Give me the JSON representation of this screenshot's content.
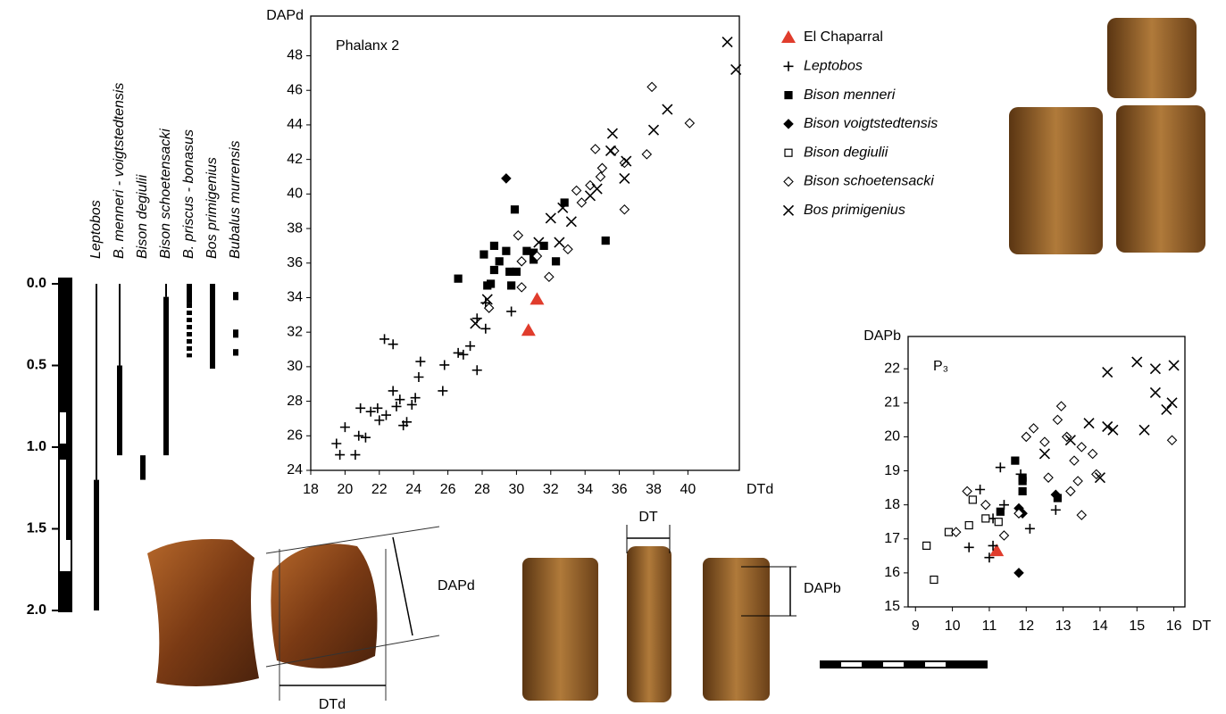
{
  "chart_data": [
    {
      "type": "range",
      "ylim": [
        0,
        2
      ],
      "yticks": [
        {
          "value": 0,
          "label": "0.0"
        },
        0.5,
        {
          "value": 1,
          "label": "1.0"
        },
        1.5,
        {
          "value": 2,
          "label": "2.0"
        }
      ],
      "series": [
        {
          "name": "Leptobos",
          "segments": [
            {
              "from": 0,
              "to": 1.2,
              "style": "thin"
            },
            {
              "from": 1.2,
              "to": 2.0,
              "style": "thick"
            }
          ]
        },
        {
          "name": "B. menneri - voigtstedtensis",
          "segments": [
            {
              "from": 0,
              "to": 0.5,
              "style": "thin"
            },
            {
              "from": 0.5,
              "to": 1.05,
              "style": "thick"
            }
          ]
        },
        {
          "name": "Bison degiulii",
          "segments": [
            {
              "from": 1.05,
              "to": 1.2,
              "style": "thick"
            }
          ]
        },
        {
          "name": "Bison schoetensacki",
          "segments": [
            {
              "from": 0,
              "to": 0.08,
              "style": "thin"
            },
            {
              "from": 0.08,
              "to": 1.05,
              "style": "thick"
            }
          ]
        },
        {
          "name": "B. priscus - bonasus",
          "segments": [
            {
              "from": 0,
              "to": 0.12,
              "style": "thick"
            },
            {
              "from": 0.12,
              "to": 0.45,
              "style": "dashed"
            }
          ]
        },
        {
          "name": "Bos primigenius",
          "segments": [
            {
              "from": 0,
              "to": 0.52,
              "style": "thick"
            }
          ]
        },
        {
          "name": "Bubalus murrensis",
          "segments": [
            {
              "from": 0.05,
              "to": 0.1,
              "style": "thick"
            },
            {
              "from": 0.28,
              "to": 0.33,
              "style": "thick"
            },
            {
              "from": 0.4,
              "to": 0.44,
              "style": "thick"
            }
          ]
        }
      ]
    },
    {
      "type": "scatter",
      "annotation": "Phalanx 2",
      "x_label": "DTd",
      "y_label": "DAPd",
      "xlim": [
        18,
        43
      ],
      "xticks": [
        18,
        20,
        22,
        24,
        26,
        28,
        30,
        32,
        34,
        36,
        38,
        40
      ],
      "ylim": [
        24,
        50.3
      ],
      "yticks": [
        24,
        26,
        28,
        30,
        32,
        34,
        36,
        38,
        40,
        42,
        44,
        46,
        48
      ],
      "legend": "right",
      "series": [
        {
          "name": "El Chaparral",
          "color": "#e03c2c",
          "marker": "triangle",
          "x": [
            30.7,
            31.2
          ],
          "values": [
            32.1,
            33.9
          ]
        },
        {
          "name": "Leptobos",
          "color": "#000000",
          "marker": "plus",
          "x": [
            19.5,
            19.7,
            20.0,
            20.6,
            20.8,
            20.9,
            21.2,
            21.5,
            21.9,
            22.3,
            22.4,
            22.8,
            22.8,
            23.0,
            23.2,
            23.4,
            23.6,
            23.9,
            24.1,
            24.4,
            24.3,
            25.8,
            25.7,
            26.6,
            26.9,
            27.3,
            27.7,
            27.7,
            28.2,
            28.2,
            29.7,
            22.0
          ],
          "values": [
            25.55,
            24.9,
            26.5,
            24.9,
            26.0,
            27.6,
            25.9,
            27.4,
            27.6,
            31.6,
            27.2,
            31.3,
            28.6,
            27.7,
            28.1,
            26.6,
            26.8,
            27.8,
            28.2,
            30.3,
            29.4,
            30.1,
            28.6,
            30.8,
            30.7,
            31.2,
            29.8,
            32.8,
            32.2,
            33.7,
            33.2,
            26.9
          ]
        },
        {
          "name": "Bison menneri",
          "color": "#000000",
          "marker": "square",
          "x": [
            26.6,
            28.1,
            28.7,
            28.7,
            29.0,
            29.4,
            29.9,
            29.6,
            30.0,
            30.6,
            31.0,
            31.6,
            32.3,
            32.8,
            35.2,
            28.3,
            28.5,
            29.7,
            31.0
          ],
          "values": [
            35.1,
            36.5,
            37.0,
            35.6,
            36.1,
            36.7,
            39.1,
            35.5,
            35.5,
            36.7,
            36.2,
            37.0,
            36.1,
            39.5,
            37.3,
            34.7,
            34.8,
            34.7,
            36.6
          ]
        },
        {
          "name": "Bison voigtstedtensis",
          "color": "#000000",
          "marker": "diamond",
          "x": [
            29.4
          ],
          "values": [
            40.9
          ]
        },
        {
          "name": "Bison degiulii",
          "color": "#000000",
          "marker": "open-square",
          "x": [],
          "values": []
        },
        {
          "name": "Bison schoetensacki",
          "color": "#000000",
          "marker": "open-diamond",
          "x": [
            28.4,
            30.1,
            30.3,
            30.3,
            31.2,
            31.9,
            33.0,
            33.5,
            33.8,
            34.6,
            34.9,
            35.0,
            35.7,
            36.3,
            36.3,
            37.6,
            37.9,
            40.1,
            34.3
          ],
          "values": [
            33.4,
            37.6,
            36.1,
            34.6,
            36.4,
            35.2,
            36.8,
            40.2,
            39.5,
            42.6,
            41.0,
            41.5,
            42.5,
            41.8,
            39.1,
            42.3,
            46.2,
            44.1,
            40.5
          ]
        },
        {
          "name": "Bos primigenius",
          "color": "#000000",
          "marker": "x",
          "x": [
            42.3,
            42.8,
            38.8,
            38.0,
            36.4,
            36.3,
            35.6,
            35.5,
            34.7,
            34.3,
            33.2,
            32.7,
            32.0,
            32.5,
            31.3,
            27.6,
            28.3
          ],
          "values": [
            48.8,
            47.2,
            44.9,
            43.7,
            41.9,
            40.9,
            43.5,
            42.5,
            40.3,
            39.9,
            38.4,
            39.2,
            38.6,
            37.2,
            37.2,
            32.5,
            33.9
          ]
        }
      ]
    },
    {
      "type": "scatter",
      "annotation": "P₃",
      "x_label": "DT",
      "y_label": "DAPb",
      "xlim": [
        8.8,
        16.3
      ],
      "xticks": [
        9,
        10,
        11,
        12,
        13,
        14,
        15,
        16
      ],
      "ylim": [
        15,
        22.95
      ],
      "yticks": [
        15,
        16,
        17,
        18,
        19,
        20,
        21,
        22
      ],
      "series": [
        {
          "color": "#e03c2c",
          "marker": "triangle",
          "x": [
            11.2
          ],
          "values": [
            16.65
          ]
        },
        {
          "color": "#000000",
          "marker": "plus",
          "x": [
            10.75,
            11.1,
            11.1,
            11.0,
            11.3,
            11.85,
            12.1,
            12.8,
            10.45,
            11.4
          ],
          "values": [
            18.45,
            17.6,
            16.8,
            16.45,
            19.1,
            18.9,
            17.3,
            17.85,
            16.75,
            18.0
          ]
        },
        {
          "color": "#000000",
          "marker": "square",
          "x": [
            11.7,
            11.9,
            11.9,
            11.9,
            11.3,
            12.85
          ],
          "values": [
            19.3,
            18.8,
            18.7,
            18.4,
            17.8,
            18.2
          ]
        },
        {
          "color": "#000000",
          "marker": "diamond",
          "x": [
            11.8,
            11.8,
            11.9,
            12.8
          ],
          "values": [
            16.0,
            17.9,
            17.75,
            18.3
          ]
        },
        {
          "color": "#000000",
          "marker": "open-square",
          "x": [
            9.3,
            9.5,
            9.9,
            10.45,
            10.55,
            10.9,
            11.25
          ],
          "values": [
            16.8,
            15.8,
            17.2,
            17.4,
            18.15,
            17.6,
            17.5
          ]
        },
        {
          "color": "#000000",
          "marker": "open-diamond",
          "x": [
            10.1,
            10.4,
            10.9,
            11.4,
            11.8,
            12.0,
            12.2,
            12.5,
            12.6,
            12.85,
            12.95,
            13.1,
            13.3,
            13.2,
            13.4,
            13.5,
            13.8,
            13.9,
            13.5,
            15.95
          ],
          "values": [
            17.2,
            18.4,
            18.0,
            17.1,
            17.75,
            20.0,
            20.25,
            19.85,
            18.8,
            20.5,
            20.9,
            20.0,
            19.3,
            18.4,
            18.7,
            17.7,
            19.5,
            18.9,
            19.7,
            19.9
          ]
        },
        {
          "color": "#000000",
          "marker": "x",
          "x": [
            14.2,
            15.0,
            15.5,
            16.0,
            15.5,
            15.8,
            15.95,
            15.2,
            14.2,
            14.35,
            14.0,
            13.7,
            13.2,
            12.5
          ],
          "values": [
            21.9,
            22.2,
            22.0,
            22.1,
            21.3,
            20.8,
            21.0,
            20.2,
            20.3,
            20.2,
            18.8,
            20.4,
            19.9,
            19.5
          ]
        }
      ]
    }
  ],
  "photos": {
    "labels": [
      "DAPd",
      "DTd",
      "DT",
      "DAPb"
    ]
  }
}
